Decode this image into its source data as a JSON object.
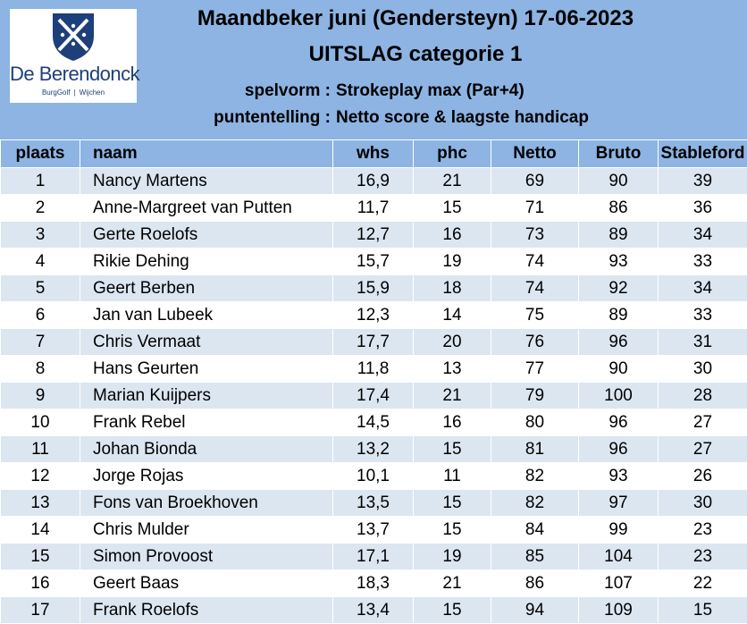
{
  "header": {
    "title": "Maandbeker juni (Gendersteyn) 17-06-2023",
    "subtitle": "UITSLAG categorie 1",
    "spelvorm_label": "spelvorm :",
    "spelvorm_value": "Strokeplay max (Par+4)",
    "puntentelling_label": "puntentelling :",
    "puntentelling_value": "Netto score & laagste handicap"
  },
  "logo": {
    "name": "De Berendonck",
    "sub_left": "BurgGolf",
    "sub_sep": "|",
    "sub_right": "Wijchen",
    "colors": {
      "primary": "#1d3f7a",
      "background": "#ffffff"
    }
  },
  "colors": {
    "header_bg": "#8db4e2",
    "row_alt": "#dce6f1"
  },
  "table": {
    "columns": [
      "plaats",
      "naam",
      "whs",
      "phc",
      "Netto",
      "Bruto",
      "Stableford"
    ],
    "rows": [
      [
        "1",
        "Nancy Martens",
        "16,9",
        "21",
        "69",
        "90",
        "39"
      ],
      [
        "2",
        "Anne-Margreet van Putten",
        "11,7",
        "15",
        "71",
        "86",
        "36"
      ],
      [
        "3",
        "Gerte Roelofs",
        "12,7",
        "16",
        "73",
        "89",
        "34"
      ],
      [
        "4",
        "Rikie Dehing",
        "15,7",
        "19",
        "74",
        "93",
        "33"
      ],
      [
        "5",
        "Geert Berben",
        "15,9",
        "18",
        "74",
        "92",
        "34"
      ],
      [
        "6",
        "Jan van Lubeek",
        "12,3",
        "14",
        "75",
        "89",
        "33"
      ],
      [
        "7",
        "Chris Vermaat",
        "17,7",
        "20",
        "76",
        "96",
        "31"
      ],
      [
        "8",
        "Hans Geurten",
        "11,8",
        "13",
        "77",
        "90",
        "30"
      ],
      [
        "9",
        "Marian Kuijpers",
        "17,4",
        "21",
        "79",
        "100",
        "28"
      ],
      [
        "10",
        "Frank Rebel",
        "14,5",
        "16",
        "80",
        "96",
        "27"
      ],
      [
        "11",
        "Johan Bionda",
        "13,2",
        "15",
        "81",
        "96",
        "27"
      ],
      [
        "12",
        "Jorge Rojas",
        "10,1",
        "11",
        "82",
        "93",
        "26"
      ],
      [
        "13",
        "Fons van Broekhoven",
        "13,5",
        "15",
        "82",
        "97",
        "30"
      ],
      [
        "14",
        "Chris Mulder",
        "13,7",
        "15",
        "84",
        "99",
        "23"
      ],
      [
        "15",
        "Simon Provoost",
        "17,1",
        "19",
        "85",
        "104",
        "23"
      ],
      [
        "16",
        "Geert Baas",
        "18,3",
        "21",
        "86",
        "107",
        "22"
      ],
      [
        "17",
        "Frank Roelofs",
        "13,4",
        "15",
        "94",
        "109",
        "15"
      ]
    ]
  }
}
